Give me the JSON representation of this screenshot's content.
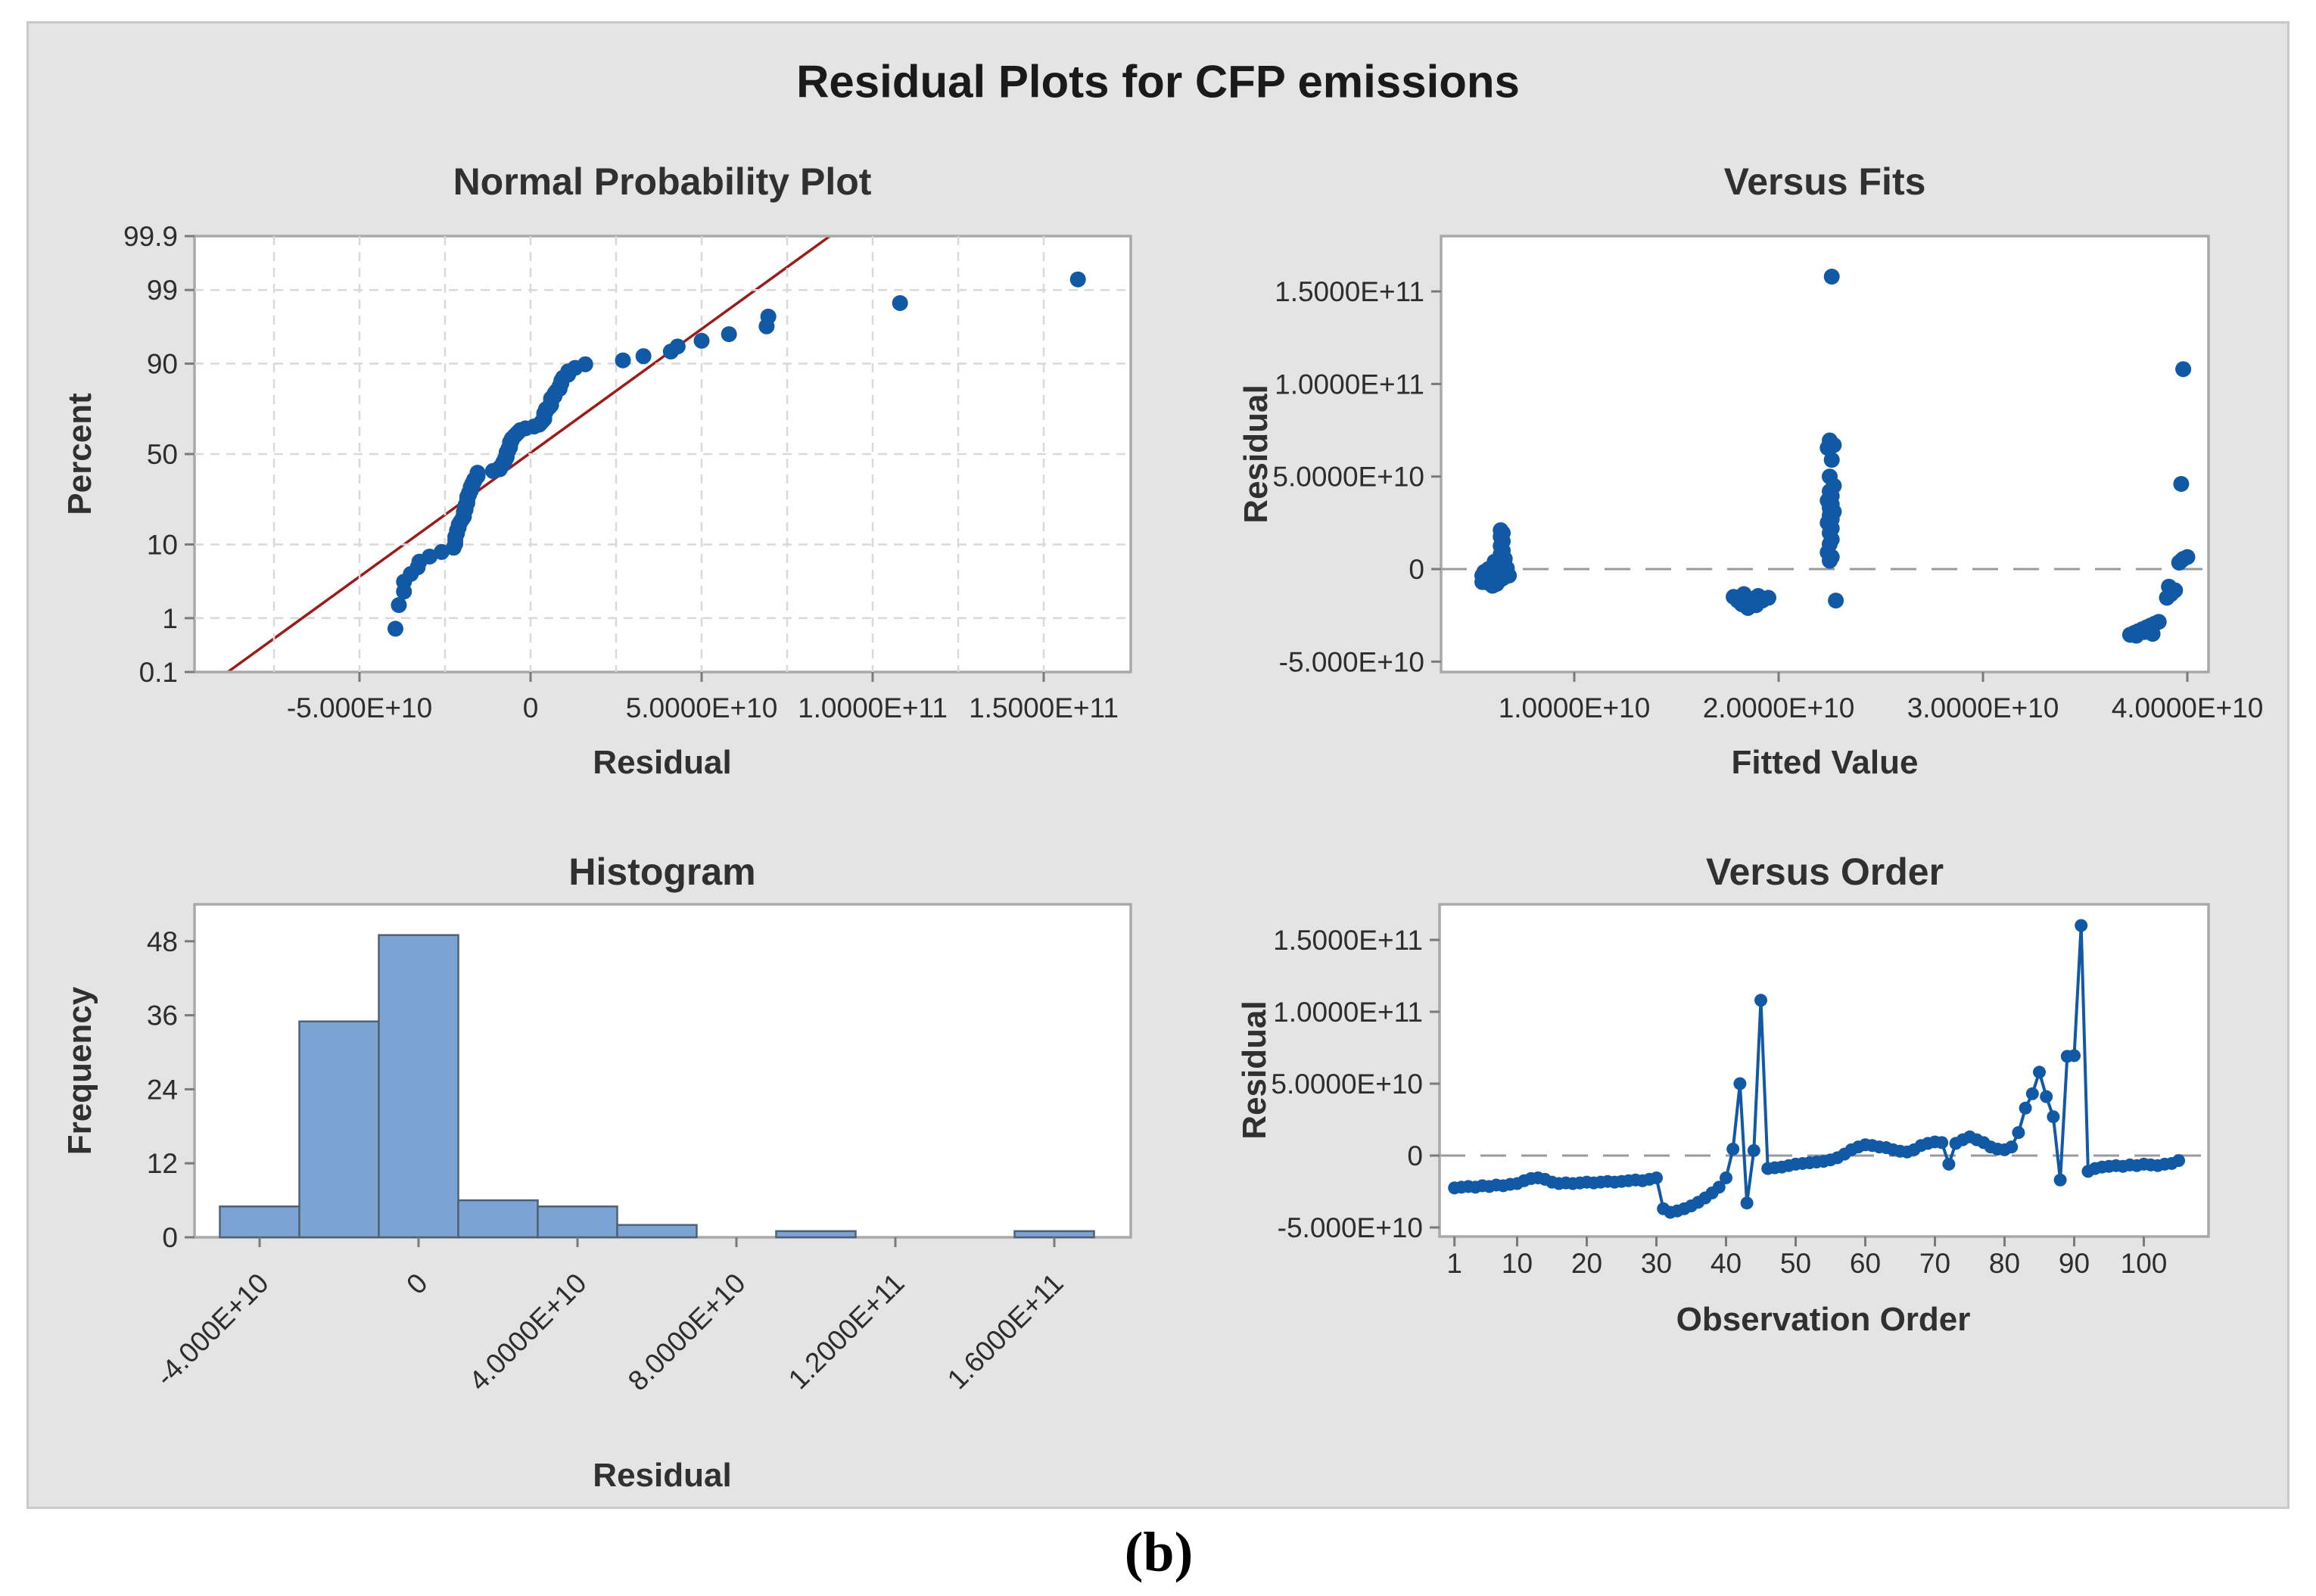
{
  "figure": {
    "title": "Residual Plots for CFP emissions",
    "caption": "(b)",
    "colors": {
      "point_blue": "#1158A5",
      "line_red": "#9B1B1B",
      "bar_fill": "#7BA3D3",
      "bar_edge": "#4F6275",
      "frame_gray": "#A9A9A9",
      "grid_gray": "#D9D9D9",
      "dash_gray": "#9A9A9A",
      "tick_gray": "#7A7A7A",
      "panel_bg": "#FFFFFF",
      "figure_bg": "#E4E4E4",
      "text_label": "#2D2D2D"
    }
  },
  "chart_data": [
    {
      "id": "normal_probability",
      "type": "scatter",
      "title": "Normal Probability Plot",
      "xlabel": "Residual",
      "ylabel": "Percent",
      "y_scale": "probit",
      "xlim_e10": [
        -9.8,
        17.55
      ],
      "ylim_percent": [
        0.1,
        99.9
      ],
      "grid": true,
      "x_ticks": [
        {
          "v": -5,
          "label": "-5.000E+10"
        },
        {
          "v": 0,
          "label": "0"
        },
        {
          "v": 5,
          "label": "5.0000E+10"
        },
        {
          "v": 10,
          "label": "1.0000E+11"
        },
        {
          "v": 15,
          "label": "1.5000E+11"
        }
      ],
      "y_ticks": [
        {
          "p": 0.1,
          "label": "0.1"
        },
        {
          "p": 1,
          "label": "1"
        },
        {
          "p": 10,
          "label": "10"
        },
        {
          "p": 50,
          "label": "50"
        },
        {
          "p": 90,
          "label": "90"
        },
        {
          "p": 99,
          "label": "99"
        },
        {
          "p": 99.9,
          "label": "99.9"
        }
      ],
      "minor_grid_step_e10": 2.5,
      "ref_line": {
        "x_at_p0_1_e10": -8.85,
        "x_at_p99_9_e10": 8.75
      },
      "points_source": "residuals_of_versus_order",
      "plotting_position": "median_rank (i-0.3)/(n+0.4)"
    },
    {
      "id": "versus_fits",
      "type": "scatter",
      "title": "Versus Fits",
      "xlabel": "Fitted Value",
      "ylabel": "Residual",
      "xlim_e10": [
        0.35,
        4.1
      ],
      "ylim_e10": [
        -5.6,
        18.0
      ],
      "zero_line_dashed": true,
      "x_ticks": [
        {
          "v": 1,
          "label": "1.0000E+10"
        },
        {
          "v": 2,
          "label": "2.0000E+10"
        },
        {
          "v": 3,
          "label": "3.0000E+10"
        },
        {
          "v": 4,
          "label": "4.0000E+10"
        }
      ],
      "y_ticks": [
        {
          "v": 15,
          "label": "1.5000E+11"
        },
        {
          "v": 10,
          "label": "1.0000E+11"
        },
        {
          "v": 5,
          "label": "5.0000E+10"
        },
        {
          "v": 0,
          "label": "0"
        },
        {
          "v": -5,
          "label": "-5.000E+10"
        }
      ],
      "unit_scale": 10000000000.0,
      "points_fitted_residual_e10": [
        [
          0.55,
          -0.35
        ],
        [
          0.57,
          -0.55
        ],
        [
          0.58,
          -0.75
        ],
        [
          0.6,
          -0.9
        ],
        [
          0.62,
          -0.8
        ],
        [
          0.63,
          -0.65
        ],
        [
          0.65,
          -0.5
        ],
        [
          0.66,
          -0.4
        ],
        [
          0.6,
          -0.25
        ],
        [
          0.56,
          -0.15
        ],
        [
          0.58,
          0.0
        ],
        [
          0.61,
          0.1
        ],
        [
          0.64,
          -0.05
        ],
        [
          0.66,
          -0.2
        ],
        [
          0.68,
          -0.35
        ],
        [
          0.63,
          -0.45
        ],
        [
          0.59,
          -0.6
        ],
        [
          0.67,
          0.05
        ],
        [
          0.64,
          0.25
        ],
        [
          0.61,
          0.4
        ],
        [
          0.66,
          0.55
        ],
        [
          0.55,
          -0.7
        ],
        [
          0.57,
          -0.25
        ],
        [
          0.62,
          0.2
        ],
        [
          0.64,
          0.8
        ],
        [
          0.65,
          1.0
        ],
        [
          0.64,
          1.25
        ],
        [
          0.65,
          1.5
        ],
        [
          0.64,
          1.75
        ],
        [
          0.65,
          1.95
        ],
        [
          0.64,
          2.1
        ],
        [
          1.78,
          -1.5
        ],
        [
          1.8,
          -1.7
        ],
        [
          1.82,
          -1.9
        ],
        [
          1.84,
          -2.0
        ],
        [
          1.86,
          -1.8
        ],
        [
          1.88,
          -1.6
        ],
        [
          1.9,
          -1.45
        ],
        [
          1.92,
          -1.7
        ],
        [
          1.85,
          -2.1
        ],
        [
          1.83,
          -1.35
        ],
        [
          1.95,
          -1.55
        ],
        [
          1.89,
          -1.95
        ],
        [
          2.26,
          15.8
        ],
        [
          2.25,
          6.95
        ],
        [
          2.27,
          6.7
        ],
        [
          2.24,
          6.55
        ],
        [
          2.26,
          5.9
        ],
        [
          2.25,
          5.0
        ],
        [
          2.27,
          4.5
        ],
        [
          2.25,
          4.2
        ],
        [
          2.26,
          3.95
        ],
        [
          2.24,
          3.7
        ],
        [
          2.26,
          3.5
        ],
        [
          2.25,
          3.3
        ],
        [
          2.27,
          3.1
        ],
        [
          2.25,
          2.9
        ],
        [
          2.26,
          2.7
        ],
        [
          2.24,
          2.5
        ],
        [
          2.26,
          2.2
        ],
        [
          2.25,
          1.95
        ],
        [
          2.26,
          1.6
        ],
        [
          2.25,
          1.35
        ],
        [
          2.24,
          0.9
        ],
        [
          2.26,
          0.65
        ],
        [
          2.25,
          0.45
        ],
        [
          2.28,
          -1.7
        ],
        [
          3.72,
          -3.55
        ],
        [
          3.74,
          -3.45
        ],
        [
          3.76,
          -3.35
        ],
        [
          3.78,
          -3.25
        ],
        [
          3.75,
          -3.6
        ],
        [
          3.8,
          -3.15
        ],
        [
          3.82,
          -3.05
        ],
        [
          3.84,
          -2.95
        ],
        [
          3.79,
          -3.4
        ],
        [
          3.86,
          -2.85
        ],
        [
          3.83,
          -3.5
        ],
        [
          3.9,
          -1.55
        ],
        [
          3.92,
          -1.35
        ],
        [
          3.94,
          -1.15
        ],
        [
          3.91,
          -0.95
        ],
        [
          3.96,
          0.35
        ],
        [
          3.98,
          0.55
        ],
        [
          4.0,
          0.65
        ],
        [
          3.97,
          0.45
        ],
        [
          3.97,
          4.6
        ],
        [
          3.98,
          10.8
        ]
      ]
    },
    {
      "id": "histogram",
      "type": "bar",
      "title": "Histogram",
      "xlabel": "Residual",
      "ylabel": "Frequency",
      "xlim_e10": [
        -5.6,
        17.9
      ],
      "ylim_counts": [
        0,
        53
      ],
      "bin_width_e10": 2,
      "unit_scale": 10000000000.0,
      "bin_centers_e10": [
        -4,
        -2,
        0,
        2,
        4,
        6,
        8,
        10,
        12,
        14,
        16
      ],
      "counts": [
        5,
        35,
        49,
        6,
        5,
        2,
        0,
        1,
        0,
        0,
        1
      ],
      "x_ticks": [
        {
          "v": -4,
          "label": "-4.000E+10"
        },
        {
          "v": 0,
          "label": "0"
        },
        {
          "v": 4,
          "label": "4.0000E+10"
        },
        {
          "v": 8,
          "label": "8.0000E+10"
        },
        {
          "v": 12,
          "label": "1.2000E+11"
        },
        {
          "v": 16,
          "label": "1.6000E+11"
        }
      ],
      "y_ticks": [
        {
          "v": 0,
          "label": "0"
        },
        {
          "v": 12,
          "label": "12"
        },
        {
          "v": 24,
          "label": "24"
        },
        {
          "v": 36,
          "label": "36"
        },
        {
          "v": 48,
          "label": "48"
        }
      ],
      "x_tick_label_rotation_deg": -45
    },
    {
      "id": "versus_order",
      "type": "line",
      "title": "Versus Order",
      "xlabel": "Observation Order",
      "ylabel": "Residual",
      "xlim_obs": [
        -1.3,
        109
      ],
      "ylim_e10": [
        -5.6,
        17.7
      ],
      "zero_line_dashed": true,
      "x_ticks": [
        {
          "v": 1,
          "label": "1"
        },
        {
          "v": 10,
          "label": "10"
        },
        {
          "v": 20,
          "label": "20"
        },
        {
          "v": 30,
          "label": "30"
        },
        {
          "v": 40,
          "label": "40"
        },
        {
          "v": 50,
          "label": "50"
        },
        {
          "v": 60,
          "label": "60"
        },
        {
          "v": 70,
          "label": "70"
        },
        {
          "v": 80,
          "label": "80"
        },
        {
          "v": 90,
          "label": "90"
        },
        {
          "v": 100,
          "label": "100"
        }
      ],
      "y_ticks": [
        {
          "v": 15,
          "label": "1.5000E+11"
        },
        {
          "v": 10,
          "label": "1.0000E+11"
        },
        {
          "v": 5,
          "label": "5.0000E+10"
        },
        {
          "v": 0,
          "label": "0"
        },
        {
          "v": -5,
          "label": "-5.000E+10"
        }
      ],
      "unit_scale": 10000000000.0,
      "residuals_e10": [
        -2.25,
        -2.2,
        -2.15,
        -2.2,
        -2.1,
        -2.15,
        -2.05,
        -2.1,
        -2.0,
        -1.95,
        -1.75,
        -1.6,
        -1.55,
        -1.65,
        -1.85,
        -1.95,
        -1.9,
        -1.95,
        -1.9,
        -1.85,
        -1.9,
        -1.85,
        -1.8,
        -1.85,
        -1.8,
        -1.75,
        -1.7,
        -1.75,
        -1.65,
        -1.55,
        -3.7,
        -3.95,
        -3.85,
        -3.7,
        -3.5,
        -3.25,
        -2.95,
        -2.6,
        -2.2,
        -1.55,
        0.45,
        5.0,
        -3.3,
        0.35,
        10.8,
        -0.9,
        -0.85,
        -0.8,
        -0.7,
        -0.6,
        -0.55,
        -0.5,
        -0.45,
        -0.4,
        -0.3,
        -0.15,
        0.1,
        0.4,
        0.6,
        0.75,
        0.7,
        0.6,
        0.55,
        0.4,
        0.3,
        0.25,
        0.4,
        0.7,
        0.85,
        0.95,
        0.9,
        -0.6,
        0.85,
        1.1,
        1.3,
        1.1,
        0.9,
        0.6,
        0.45,
        0.4,
        0.6,
        1.6,
        3.3,
        4.3,
        5.8,
        4.1,
        2.7,
        -1.7,
        6.9,
        6.95,
        16.0,
        -1.1,
        -0.9,
        -0.8,
        -0.75,
        -0.7,
        -0.75,
        -0.65,
        -0.7,
        -0.6,
        -0.65,
        -0.7,
        -0.6,
        -0.55,
        -0.35
      ]
    }
  ]
}
